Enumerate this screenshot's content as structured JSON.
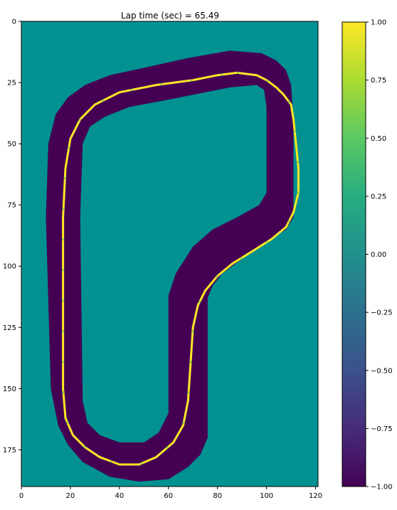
{
  "chart_data": {
    "type": "heatmap",
    "title": "Lap time (sec) = 65.49",
    "xlabel": "",
    "ylabel": "",
    "xlim": [
      0,
      121
    ],
    "ylim": [
      190,
      0
    ],
    "x_ticks": [
      "0",
      "20",
      "40",
      "60",
      "80",
      "100",
      "120"
    ],
    "y_ticks": [
      "0",
      "25",
      "50",
      "75",
      "100",
      "125",
      "150",
      "175"
    ],
    "colorbar": {
      "min": -1.0,
      "max": 1.0,
      "ticks": [
        "1.00",
        "0.75",
        "0.50",
        "0.25",
        "0.00",
        "−0.25",
        "−0.50",
        "−0.75",
        "−1.00"
      ],
      "colormap": "viridis"
    },
    "background_value": 0.0,
    "track_value": -1.0,
    "racing_line_value": 1.0,
    "grid": false,
    "colors": {
      "background": "#009190",
      "track": "#440154",
      "racing_line": "#fde725",
      "racing_line_alt": "#7ad151"
    },
    "track_outline": [
      [
        85,
        12
      ],
      [
        98,
        13
      ],
      [
        104,
        16
      ],
      [
        108,
        20
      ],
      [
        110,
        26
      ],
      [
        111,
        40
      ],
      [
        111,
        80
      ],
      [
        108,
        85
      ],
      [
        100,
        90
      ],
      [
        90,
        97
      ],
      [
        82,
        103
      ],
      [
        78,
        108
      ],
      [
        76,
        113
      ],
      [
        76,
        170
      ],
      [
        73,
        177
      ],
      [
        68,
        182
      ],
      [
        60,
        187
      ],
      [
        48,
        188
      ],
      [
        36,
        186
      ],
      [
        25,
        180
      ],
      [
        19,
        173
      ],
      [
        15,
        165
      ],
      [
        12,
        150
      ],
      [
        10,
        80
      ],
      [
        11,
        50
      ],
      [
        14,
        38
      ],
      [
        19,
        31
      ],
      [
        26,
        26
      ],
      [
        36,
        22
      ],
      [
        50,
        19
      ],
      [
        68,
        15
      ]
    ],
    "track_inner_hole": [
      [
        85,
        27
      ],
      [
        96,
        26
      ],
      [
        99,
        28
      ],
      [
        100,
        35
      ],
      [
        100,
        70
      ],
      [
        97,
        75
      ],
      [
        88,
        80
      ],
      [
        78,
        85
      ],
      [
        70,
        92
      ],
      [
        63,
        103
      ],
      [
        60,
        112
      ],
      [
        60,
        160
      ],
      [
        56,
        168
      ],
      [
        50,
        172
      ],
      [
        40,
        172
      ],
      [
        32,
        169
      ],
      [
        27,
        164
      ],
      [
        25,
        155
      ],
      [
        24,
        80
      ],
      [
        25,
        50
      ],
      [
        28,
        43
      ],
      [
        34,
        39
      ],
      [
        44,
        35
      ],
      [
        60,
        32
      ]
    ],
    "racing_line": [
      [
        88,
        21
      ],
      [
        96,
        22
      ],
      [
        100,
        24
      ],
      [
        104,
        27
      ],
      [
        107,
        30
      ],
      [
        110,
        34
      ],
      [
        111,
        40
      ],
      [
        112,
        50
      ],
      [
        113,
        60
      ],
      [
        113,
        70
      ],
      [
        111,
        78
      ],
      [
        108,
        84
      ],
      [
        102,
        89
      ],
      [
        94,
        94
      ],
      [
        86,
        99
      ],
      [
        80,
        104
      ],
      [
        75,
        110
      ],
      [
        72,
        116
      ],
      [
        70,
        125
      ],
      [
        69,
        140
      ],
      [
        68,
        155
      ],
      [
        66,
        165
      ],
      [
        62,
        172
      ],
      [
        55,
        178
      ],
      [
        48,
        181
      ],
      [
        40,
        181
      ],
      [
        32,
        178
      ],
      [
        26,
        174
      ],
      [
        21,
        169
      ],
      [
        18,
        162
      ],
      [
        17,
        150
      ],
      [
        17,
        130
      ],
      [
        17,
        100
      ],
      [
        17,
        80
      ],
      [
        18,
        60
      ],
      [
        20,
        48
      ],
      [
        24,
        40
      ],
      [
        30,
        34
      ],
      [
        40,
        29
      ],
      [
        55,
        26
      ],
      [
        70,
        24
      ],
      [
        80,
        22
      ]
    ]
  }
}
